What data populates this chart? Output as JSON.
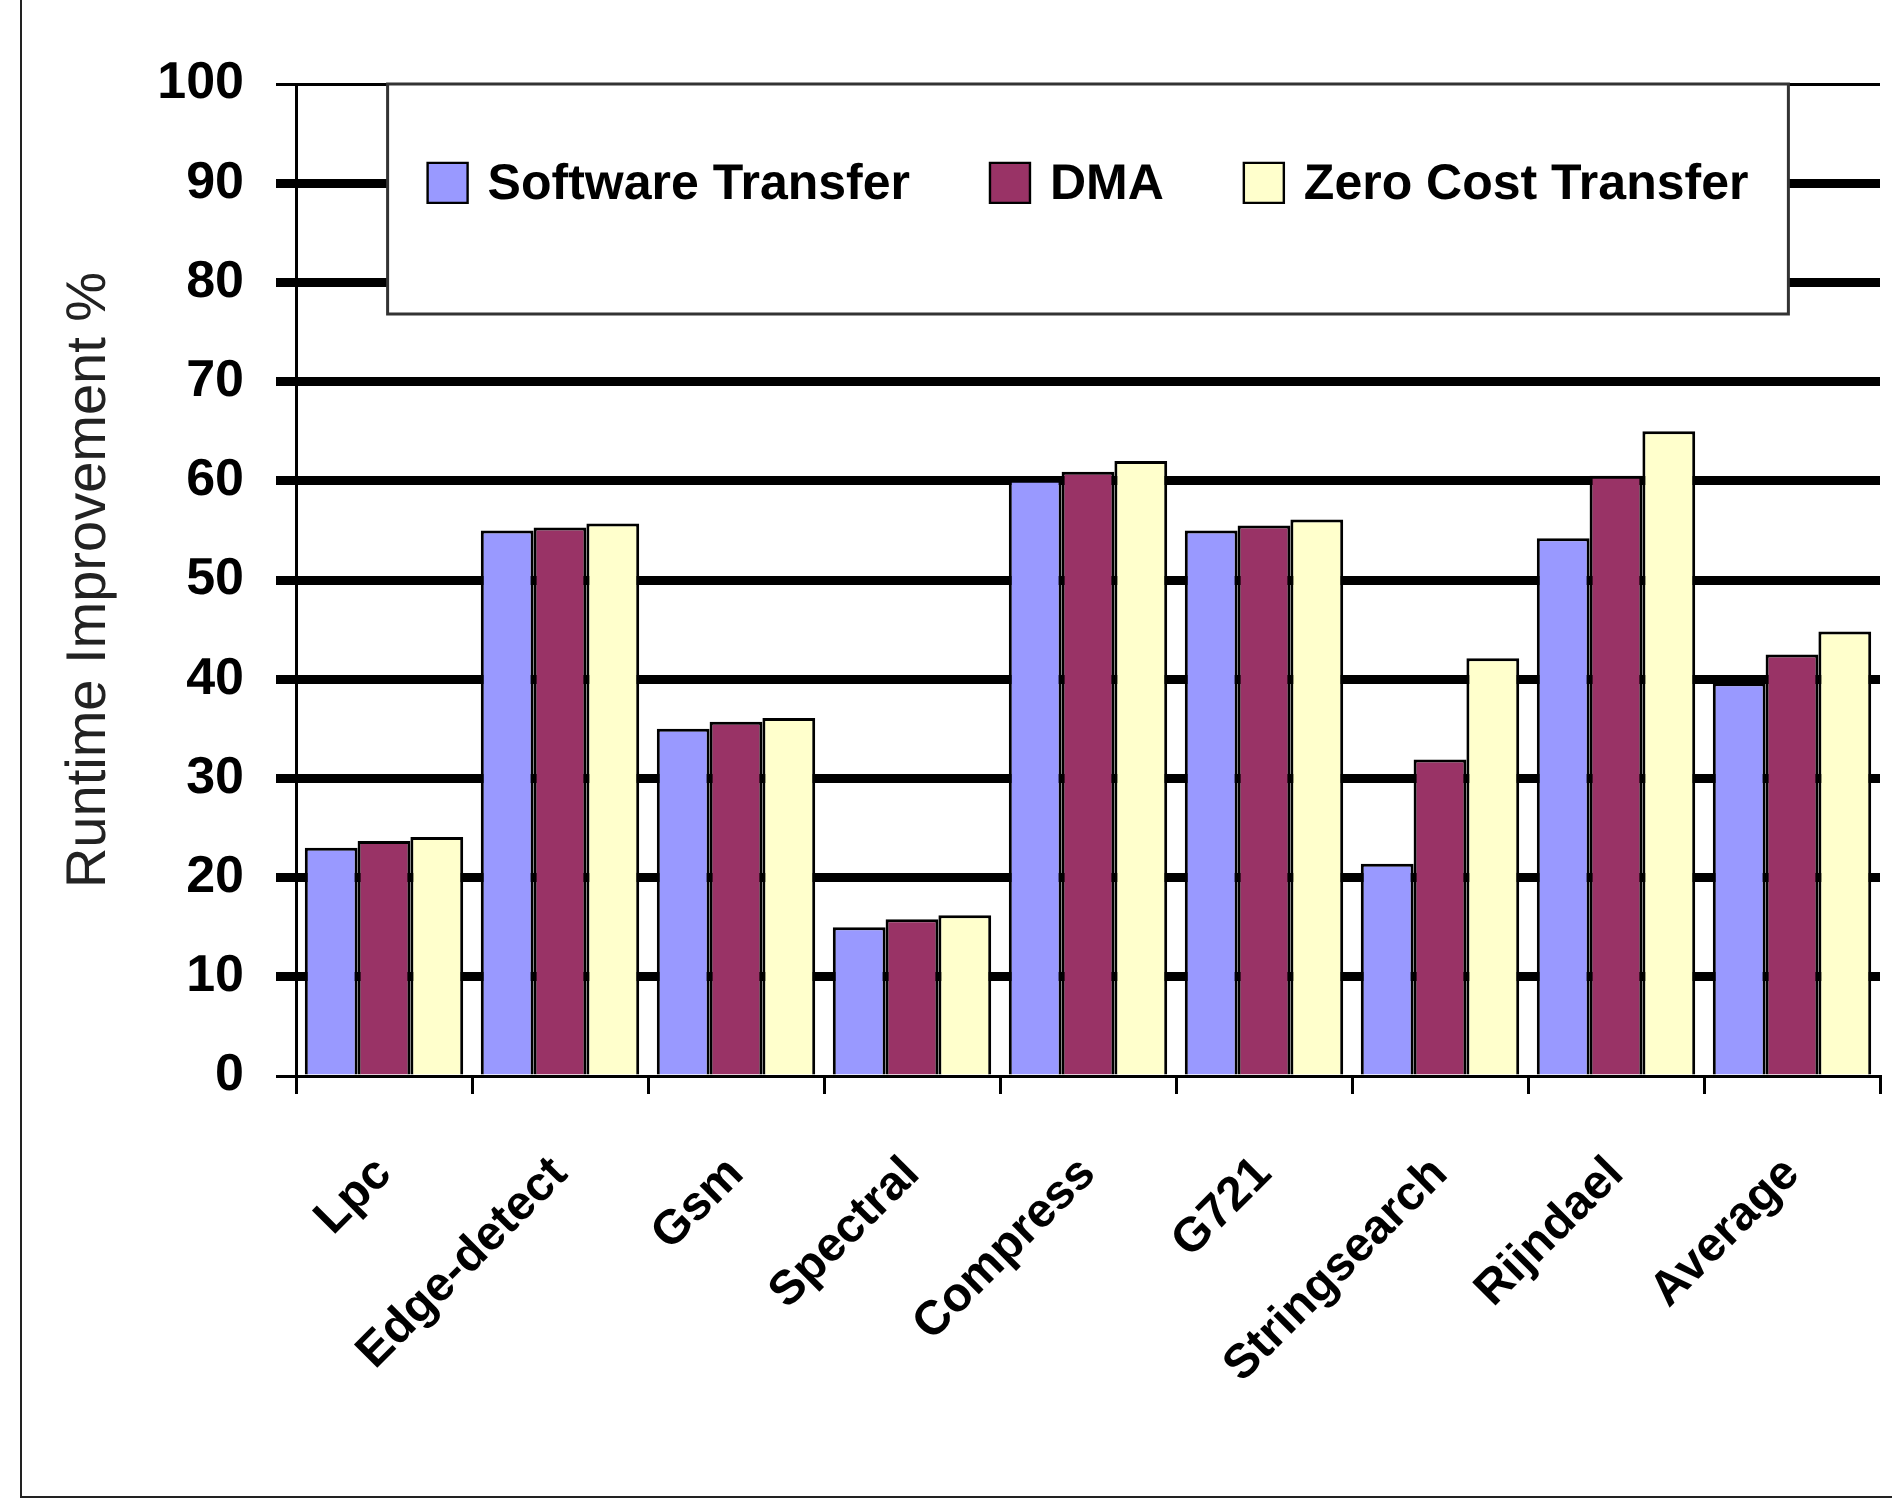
{
  "chart_data": {
    "type": "bar",
    "ylabel": "Runtime Improvement %",
    "categories": [
      "Lpc",
      "Edge-detect",
      "Gsm",
      "Spectral",
      "Compress",
      "G721",
      "Stringsearch",
      "Rijndael",
      "Average"
    ],
    "series": [
      {
        "name": "Software Transfer",
        "color": "#9999ff",
        "values": [
          23,
          55,
          35,
          15,
          60.1,
          55,
          21.4,
          54.2,
          39.6
        ]
      },
      {
        "name": "DMA",
        "color": "#993366",
        "values": [
          23.7,
          55.3,
          35.7,
          15.8,
          60.9,
          55.5,
          31.9,
          60.5,
          42.5
        ]
      },
      {
        "name": "Zero Cost Transfer",
        "color": "#ffffcc",
        "values": [
          24.1,
          55.7,
          36.1,
          16.2,
          62,
          56.1,
          42.1,
          65,
          44.8
        ]
      }
    ],
    "ylim": [
      0,
      100
    ],
    "yticks": [
      0,
      10,
      20,
      30,
      40,
      50,
      60,
      70,
      80,
      90,
      100
    ],
    "grid": "y",
    "legend": "top"
  }
}
